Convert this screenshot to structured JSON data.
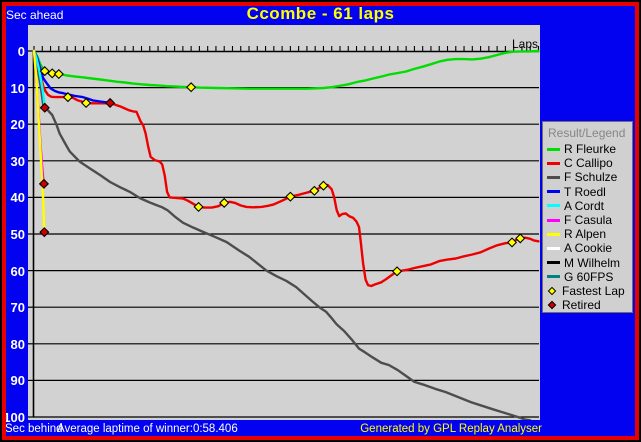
{
  "window": {
    "title": "Ccombe - 61 laps",
    "sec_ahead_label": "Sec ahead",
    "sec_behind_label": "Sec behind",
    "avg_laptime_text": "Average laptime of winner:0:58.406",
    "credit_text": "Generated by GPL Replay Analyser",
    "laps_axis_label": "Laps"
  },
  "colors": {
    "background": "#0202f0",
    "frame_red": "#e80000",
    "frame_black": "#000000",
    "plot_bg": "#d2d2d2",
    "legend_bg": "#d0d0d0",
    "title_text": "#ffff00",
    "axis_label_text": "#ffffff",
    "legend_title_text": "#868686"
  },
  "legend": {
    "title": "Result/Legend",
    "items": [
      {
        "label": "R Fleurke",
        "color": "#00dd00",
        "type": "line"
      },
      {
        "label": "C Callipo",
        "color": "#ee0000",
        "type": "line"
      },
      {
        "label": "F Schulze",
        "color": "#4d4d4d",
        "type": "line"
      },
      {
        "label": "T Roedl",
        "color": "#0000f0",
        "type": "line"
      },
      {
        "label": "A Cordt",
        "color": "#00ffff",
        "type": "line"
      },
      {
        "label": "F Casula",
        "color": "#ff00ff",
        "type": "line"
      },
      {
        "label": "R Alpen",
        "color": "#ffff00",
        "type": "line"
      },
      {
        "label": "A Cookie",
        "color": "#ffffff",
        "type": "line"
      },
      {
        "label": "M Wilhelm",
        "color": "#000000",
        "type": "line"
      },
      {
        "label": "G 60FPS",
        "color": "#008080",
        "type": "line"
      },
      {
        "label": "Fastest Lap",
        "color": "#ffff00",
        "type": "diamond"
      },
      {
        "label": "Retired",
        "color": "#cc0000",
        "type": "diamond"
      }
    ]
  },
  "chart_data": {
    "type": "line",
    "title": "Ccombe - 61 laps",
    "xlabel": "Laps",
    "ylabel_top": "Sec ahead",
    "ylabel_bottom": "Sec behind",
    "xlim": [
      0,
      61
    ],
    "ylim": [
      0,
      100
    ],
    "y_axis_inverted": true,
    "yticks": [
      0,
      10,
      20,
      30,
      40,
      50,
      60,
      70,
      80,
      90,
      100
    ],
    "avg_laptime_of_winner": "0:58.406",
    "total_laps": 61,
    "series": [
      {
        "name": "R Fleurke",
        "color": "#00dd00",
        "result": "finished 1st",
        "points": [
          [
            0,
            0
          ],
          [
            0.4,
            1.5
          ],
          [
            0.8,
            3.8
          ],
          [
            1.3,
            5.5
          ],
          [
            1.8,
            5.9
          ],
          [
            2.2,
            6.1
          ],
          [
            3,
            6.3
          ],
          [
            4,
            6.7
          ],
          [
            5,
            7
          ],
          [
            6,
            7.2
          ],
          [
            7,
            7.5
          ],
          [
            8,
            7.8
          ],
          [
            9,
            8.1
          ],
          [
            10,
            8.4
          ],
          [
            11,
            8.6
          ],
          [
            12,
            8.9
          ],
          [
            13,
            9.1
          ],
          [
            14,
            9.3
          ],
          [
            15,
            9.4
          ],
          [
            16,
            9.6
          ],
          [
            17,
            9.7
          ],
          [
            18,
            9.8
          ],
          [
            19,
            9.9
          ],
          [
            20,
            10
          ],
          [
            22,
            10.1
          ],
          [
            24,
            10.2
          ],
          [
            26,
            10.3
          ],
          [
            30,
            10.3
          ],
          [
            33,
            10.3
          ],
          [
            35,
            10.1
          ],
          [
            36,
            9.9
          ],
          [
            37,
            9.5
          ],
          [
            38,
            9.1
          ],
          [
            39,
            8.5
          ],
          [
            40,
            8.1
          ],
          [
            41,
            7.5
          ],
          [
            42,
            7
          ],
          [
            43,
            6.4
          ],
          [
            44,
            6
          ],
          [
            45,
            5.6
          ],
          [
            46,
            4.9
          ],
          [
            47,
            4.3
          ],
          [
            48,
            3.6
          ],
          [
            49,
            2.9
          ],
          [
            50,
            2.4
          ],
          [
            51,
            2.2
          ],
          [
            52,
            2.2
          ],
          [
            53,
            2.3
          ],
          [
            54,
            2.1
          ],
          [
            55,
            1.7
          ],
          [
            56,
            1.1
          ],
          [
            57,
            0.5
          ],
          [
            58,
            0.2
          ],
          [
            59,
            0.1
          ],
          [
            60,
            0.1
          ],
          [
            61,
            0
          ]
        ]
      },
      {
        "name": "C Callipo",
        "color": "#ee0000",
        "result": "finished 2nd",
        "points": [
          [
            0,
            0
          ],
          [
            0.4,
            2.5
          ],
          [
            0.8,
            6.5
          ],
          [
            1.1,
            9.6
          ],
          [
            1.4,
            11
          ],
          [
            1.7,
            12
          ],
          [
            2.1,
            12.5
          ],
          [
            2.6,
            12.6
          ],
          [
            3.4,
            12.6
          ],
          [
            4.1,
            12.6
          ],
          [
            4.7,
            12.8
          ],
          [
            5.3,
            13.5
          ],
          [
            5.9,
            13.9
          ],
          [
            6.3,
            14.2
          ],
          [
            7,
            14.3
          ],
          [
            8,
            14.3
          ],
          [
            9,
            14.3
          ],
          [
            9.5,
            14.4
          ],
          [
            10,
            14.8
          ],
          [
            10.5,
            15.2
          ],
          [
            11,
            15.7
          ],
          [
            11.5,
            16.2
          ],
          [
            12,
            16.5
          ],
          [
            12.4,
            16.6
          ],
          [
            12.9,
            19.3
          ],
          [
            13.2,
            20.3
          ],
          [
            13.5,
            22.5
          ],
          [
            13.8,
            26
          ],
          [
            14.1,
            28.9
          ],
          [
            14.6,
            29.8
          ],
          [
            15.2,
            30.2
          ],
          [
            15.5,
            31
          ],
          [
            15.8,
            34
          ],
          [
            16.1,
            38.5
          ],
          [
            16.4,
            40
          ],
          [
            17,
            40.1
          ],
          [
            18,
            40.3
          ],
          [
            18.6,
            40.9
          ],
          [
            19.2,
            41.7
          ],
          [
            19.9,
            42.6
          ],
          [
            20.6,
            42.8
          ],
          [
            21.5,
            42.8
          ],
          [
            22.3,
            42.4
          ],
          [
            23,
            41.5
          ],
          [
            23.7,
            41.2
          ],
          [
            24.3,
            41.5
          ],
          [
            25,
            42.2
          ],
          [
            25.7,
            42.6
          ],
          [
            26.5,
            42.7
          ],
          [
            27.5,
            42.6
          ],
          [
            28.3,
            42.3
          ],
          [
            29,
            41.9
          ],
          [
            30,
            40.9
          ],
          [
            31,
            39.8
          ],
          [
            32,
            39.3
          ],
          [
            33,
            38.7
          ],
          [
            33.9,
            38.2
          ],
          [
            34.5,
            37.4
          ],
          [
            35,
            36.8
          ],
          [
            35.5,
            36.6
          ],
          [
            36,
            37.8
          ],
          [
            36.3,
            40
          ],
          [
            36.6,
            43.5
          ],
          [
            36.9,
            45.1
          ],
          [
            37.3,
            44.5
          ],
          [
            37.7,
            44.4
          ],
          [
            38.1,
            45.1
          ],
          [
            38.6,
            45.6
          ],
          [
            39,
            46.6
          ],
          [
            39.3,
            48.1
          ],
          [
            39.5,
            52
          ],
          [
            39.8,
            58
          ],
          [
            40.1,
            62.5
          ],
          [
            40.4,
            64
          ],
          [
            40.8,
            64.2
          ],
          [
            41.2,
            63.8
          ],
          [
            42,
            63.2
          ],
          [
            42.6,
            62.3
          ],
          [
            43.2,
            61.3
          ],
          [
            43.9,
            60.2
          ],
          [
            44.6,
            60
          ],
          [
            45.3,
            59.7
          ],
          [
            46,
            59.3
          ],
          [
            47,
            58.8
          ],
          [
            48,
            58.3
          ],
          [
            49,
            57.4
          ],
          [
            50,
            57
          ],
          [
            51,
            56.7
          ],
          [
            52,
            56.1
          ],
          [
            53,
            55.6
          ],
          [
            54,
            55
          ],
          [
            55,
            54
          ],
          [
            56,
            53.1
          ],
          [
            57,
            52.5
          ],
          [
            57.8,
            52.3
          ],
          [
            58.3,
            51.6
          ],
          [
            58.8,
            51.2
          ],
          [
            59.4,
            51
          ],
          [
            60,
            51.3
          ],
          [
            60.5,
            51.8
          ],
          [
            61,
            52
          ]
        ]
      },
      {
        "name": "F Schulze",
        "color": "#4d4d4d",
        "result": "finished 3rd",
        "points": [
          [
            0,
            0
          ],
          [
            0.3,
            3
          ],
          [
            0.6,
            7
          ],
          [
            0.9,
            11
          ],
          [
            1.1,
            14.5
          ],
          [
            1.6,
            16
          ],
          [
            2.2,
            17.5
          ],
          [
            2.7,
            20
          ],
          [
            3.1,
            22.5
          ],
          [
            3.7,
            25
          ],
          [
            4.3,
            27.4
          ],
          [
            5.5,
            30.2
          ],
          [
            6.7,
            32
          ],
          [
            8,
            33.9
          ],
          [
            9.2,
            35.8
          ],
          [
            10.4,
            37.2
          ],
          [
            11.6,
            38.5
          ],
          [
            12.8,
            40.2
          ],
          [
            14,
            41.4
          ],
          [
            15,
            42.3
          ],
          [
            15.5,
            42.7
          ],
          [
            16.2,
            43.6
          ],
          [
            17,
            45.2
          ],
          [
            18,
            46.9
          ],
          [
            19.2,
            48.2
          ],
          [
            20.3,
            49.3
          ],
          [
            22,
            50.9
          ],
          [
            23.3,
            52.2
          ],
          [
            24.8,
            54.5
          ],
          [
            26,
            56.2
          ],
          [
            27,
            58
          ],
          [
            28.1,
            60
          ],
          [
            29.3,
            61.5
          ],
          [
            30.5,
            62.8
          ],
          [
            31.7,
            64.5
          ],
          [
            32.7,
            66.5
          ],
          [
            33.6,
            68.3
          ],
          [
            34.5,
            70
          ],
          [
            35.3,
            71.2
          ],
          [
            36,
            73
          ],
          [
            36.6,
            74.7
          ],
          [
            37.5,
            76.5
          ],
          [
            38.4,
            78.8
          ],
          [
            39.3,
            81.3
          ],
          [
            40,
            82.3
          ],
          [
            41,
            83.8
          ],
          [
            42,
            85.2
          ],
          [
            42.9,
            85.8
          ],
          [
            44,
            87.2
          ],
          [
            45,
            88.8
          ],
          [
            46,
            90.4
          ],
          [
            47.3,
            91.3
          ],
          [
            48.5,
            92.3
          ],
          [
            49.8,
            93.2
          ],
          [
            51,
            94.3
          ],
          [
            52.9,
            96
          ],
          [
            54,
            96.8
          ],
          [
            55.5,
            97.9
          ],
          [
            56.5,
            98.6
          ],
          [
            57.5,
            99.3
          ],
          [
            58.5,
            100
          ],
          [
            59.4,
            100.7
          ],
          [
            60,
            100.9
          ]
        ]
      },
      {
        "name": "T Roedl",
        "color": "#0000f0",
        "result": "retired",
        "points": [
          [
            0,
            0
          ],
          [
            0.4,
            2
          ],
          [
            0.8,
            5
          ],
          [
            1.1,
            7.4
          ],
          [
            1.6,
            9
          ],
          [
            2,
            10.2
          ],
          [
            2.5,
            10.9
          ],
          [
            3,
            11.3
          ],
          [
            3.5,
            11.5
          ],
          [
            4.2,
            11.9
          ],
          [
            5,
            12.3
          ],
          [
            5.9,
            12.6
          ],
          [
            6.5,
            13
          ],
          [
            7.1,
            13.5
          ],
          [
            8,
            13.8
          ],
          [
            8.6,
            14
          ],
          [
            9.2,
            14.2
          ]
        ]
      },
      {
        "name": "A Cordt",
        "color": "#00ffff",
        "result": "retired",
        "points": [
          [
            0,
            0
          ],
          [
            0.3,
            2
          ],
          [
            0.6,
            5
          ],
          [
            0.9,
            8.5
          ],
          [
            1.1,
            11.5
          ],
          [
            1.3,
            15.5
          ]
        ]
      },
      {
        "name": "F Casula",
        "color": "#ff00ff",
        "result": "retired",
        "points": [
          [
            0,
            0
          ],
          [
            0.2,
            5
          ],
          [
            0.4,
            12
          ],
          [
            0.6,
            19
          ],
          [
            0.8,
            26
          ],
          [
            1,
            32
          ],
          [
            1.1,
            34.5
          ],
          [
            1.2,
            36.3
          ]
        ]
      },
      {
        "name": "R Alpen",
        "color": "#ffff00",
        "result": "retired",
        "points": [
          [
            0,
            0
          ],
          [
            0.3,
            8
          ],
          [
            0.5,
            16
          ],
          [
            0.7,
            24
          ],
          [
            0.9,
            32
          ],
          [
            1.05,
            38
          ],
          [
            1.15,
            43
          ],
          [
            1.25,
            49.5
          ]
        ]
      },
      {
        "name": "A Cookie",
        "color": "#ffffff",
        "result": "retired",
        "points": []
      },
      {
        "name": "M Wilhelm",
        "color": "#000000",
        "result": "retired",
        "points": []
      },
      {
        "name": "G 60FPS",
        "color": "#008080",
        "result": "retired",
        "points": []
      }
    ],
    "fastest_lap_markers": [
      [
        1.3,
        5.5
      ],
      [
        2.2,
        6.1
      ],
      [
        3,
        6.3
      ],
      [
        19,
        9.9
      ],
      [
        4.1,
        12.6
      ],
      [
        6.3,
        14.2
      ],
      [
        19.9,
        42.6
      ],
      [
        23,
        41.5
      ],
      [
        31,
        39.8
      ],
      [
        33.9,
        38.2
      ],
      [
        35,
        36.8
      ],
      [
        43.9,
        60.2
      ],
      [
        57.8,
        52.3
      ],
      [
        58.8,
        51.2
      ]
    ],
    "retired_markers": [
      [
        1.3,
        15.5
      ],
      [
        9.2,
        14.2
      ],
      [
        1.2,
        36.3
      ],
      [
        1.25,
        49.5
      ]
    ],
    "marker_colors": {
      "fastest_lap": "#ffff00",
      "retired": "#cc0000"
    }
  }
}
